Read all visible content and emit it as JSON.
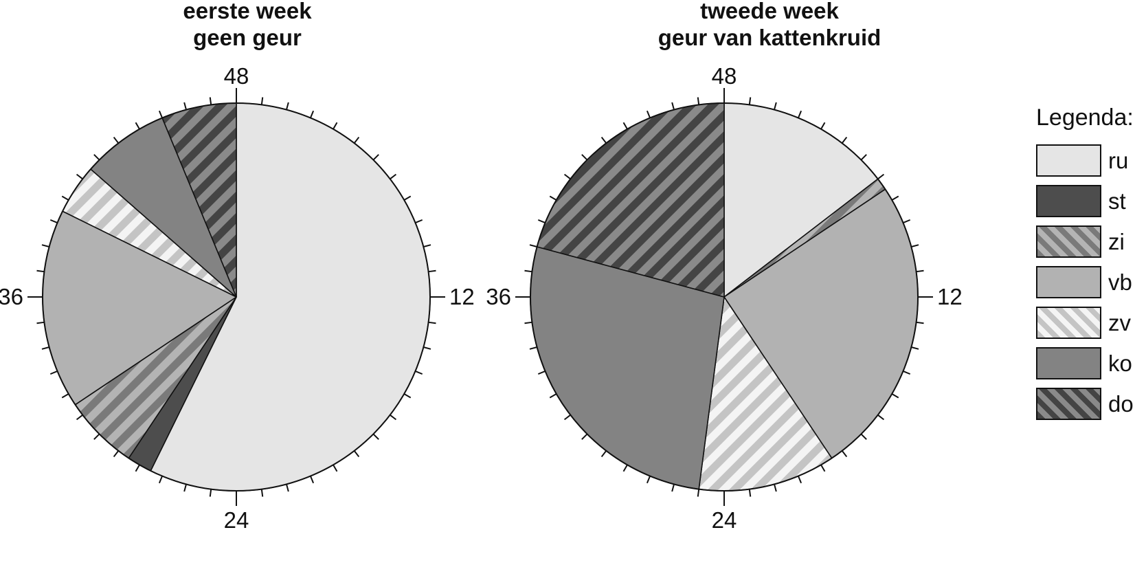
{
  "colors": {
    "ru": "#e5e5e5",
    "st": "#4d4d4d",
    "zi": "#9a9a9a",
    "vb": "#b2b2b2",
    "zv": "#e2e2e2",
    "ko": "#838383",
    "do": "#6c6c6c"
  },
  "legend": {
    "title": "Legenda:",
    "items": [
      {
        "key": "ru",
        "label": "ru",
        "pattern": "solid"
      },
      {
        "key": "st",
        "label": "st",
        "pattern": "solid"
      },
      {
        "key": "zi",
        "label": "zi",
        "pattern": "striped"
      },
      {
        "key": "vb",
        "label": "vb",
        "pattern": "solid"
      },
      {
        "key": "zv",
        "label": "zv",
        "pattern": "striped"
      },
      {
        "key": "ko",
        "label": "ko",
        "pattern": "solid"
      },
      {
        "key": "do",
        "label": "do",
        "pattern": "striped"
      }
    ]
  },
  "chart_data": [
    {
      "type": "pie",
      "title": [
        "eerste week",
        "geen geur"
      ],
      "tick_labels": [
        "48",
        "12",
        "24",
        "36"
      ],
      "total": 48,
      "direction": "clockwise",
      "start": "top",
      "slices": [
        {
          "label": "ru",
          "value": 27.5
        },
        {
          "label": "st",
          "value": 1.0
        },
        {
          "label": "zi",
          "value": 3.0
        },
        {
          "label": "vb",
          "value": 8.0
        },
        {
          "label": "zv",
          "value": 2.0
        },
        {
          "label": "ko",
          "value": 3.5
        },
        {
          "label": "do",
          "value": 3.0
        }
      ]
    },
    {
      "type": "pie",
      "title": [
        "tweede week",
        "geur van kattenkruid"
      ],
      "tick_labels": [
        "48",
        "12",
        "24",
        "36"
      ],
      "total": 48,
      "direction": "clockwise",
      "start": "top",
      "slices": [
        {
          "label": "ru",
          "value": 7.0
        },
        {
          "label": "zi",
          "value": 0.5
        },
        {
          "label": "vb",
          "value": 12.0
        },
        {
          "label": "zv",
          "value": 5.5
        },
        {
          "label": "ko",
          "value": 13.0
        },
        {
          "label": "do",
          "value": 10.0
        }
      ]
    }
  ]
}
